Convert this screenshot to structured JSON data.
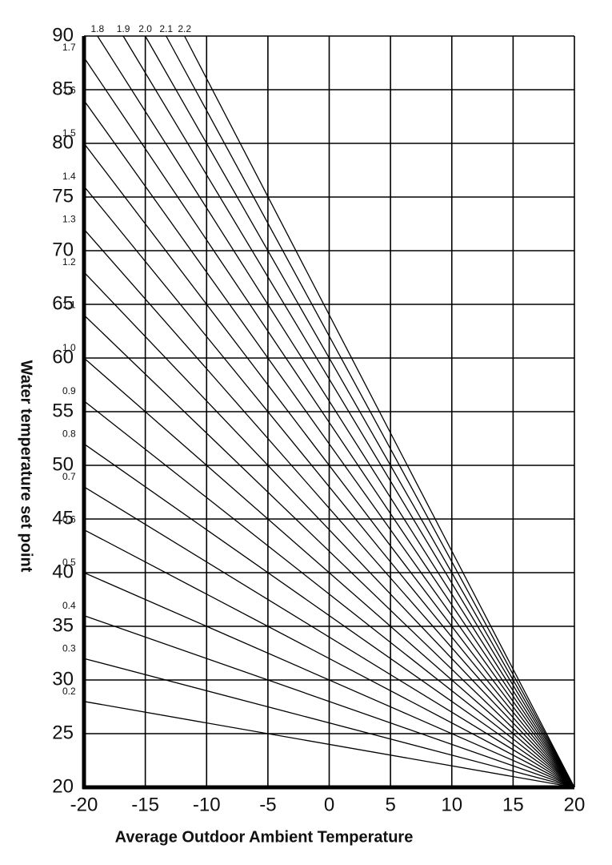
{
  "chart_data": {
    "type": "line",
    "x_label": "Average Outdoor Ambient Temperature",
    "y_label": "Water temperature set point",
    "xlim": [
      -20,
      20
    ],
    "xticks": [
      -20,
      -15,
      -10,
      -5,
      0,
      5,
      10,
      15,
      20
    ],
    "ylim": [
      20,
      90
    ],
    "yticks": [
      20,
      25,
      30,
      35,
      40,
      45,
      50,
      55,
      60,
      65,
      70,
      75,
      80,
      85,
      90
    ],
    "grid": true,
    "color": "#000000",
    "series": [
      {
        "name": "0.2",
        "x": [
          -20,
          20
        ],
        "values": [
          28,
          20
        ]
      },
      {
        "name": "0.3",
        "x": [
          -20,
          20
        ],
        "values": [
          32,
          20
        ]
      },
      {
        "name": "0.4",
        "x": [
          -20,
          20
        ],
        "values": [
          36,
          20
        ]
      },
      {
        "name": "0.5",
        "x": [
          -20,
          20
        ],
        "values": [
          40,
          20
        ]
      },
      {
        "name": "0.6",
        "x": [
          -20,
          20
        ],
        "values": [
          44,
          20
        ]
      },
      {
        "name": "0.7",
        "x": [
          -20,
          20
        ],
        "values": [
          48,
          20
        ]
      },
      {
        "name": "0.8",
        "x": [
          -20,
          20
        ],
        "values": [
          52,
          20
        ]
      },
      {
        "name": "0.9",
        "x": [
          -20,
          20
        ],
        "values": [
          56,
          20
        ]
      },
      {
        "name": "1.0",
        "x": [
          -20,
          20
        ],
        "values": [
          60,
          20
        ]
      },
      {
        "name": "1.1",
        "x": [
          -20,
          20
        ],
        "values": [
          64,
          20
        ]
      },
      {
        "name": "1.2",
        "x": [
          -20,
          20
        ],
        "values": [
          68,
          20
        ]
      },
      {
        "name": "1.3",
        "x": [
          -20,
          20
        ],
        "values": [
          72,
          20
        ]
      },
      {
        "name": "1.4",
        "x": [
          -20,
          20
        ],
        "values": [
          76,
          20
        ]
      },
      {
        "name": "1.5",
        "x": [
          -20,
          20
        ],
        "values": [
          80,
          20
        ]
      },
      {
        "name": "1.6",
        "x": [
          -20,
          20
        ],
        "values": [
          84,
          20
        ]
      },
      {
        "name": "1.7",
        "x": [
          -20,
          20
        ],
        "values": [
          88,
          20
        ]
      },
      {
        "name": "1.8",
        "x": [
          -18.9,
          20
        ],
        "values": [
          90,
          20
        ]
      },
      {
        "name": "1.9",
        "x": [
          -16.8,
          20
        ],
        "values": [
          90,
          20
        ]
      },
      {
        "name": "2.0",
        "x": [
          -15,
          20
        ],
        "values": [
          90,
          20
        ]
      },
      {
        "name": "2.1",
        "x": [
          -13.3,
          20
        ],
        "values": [
          90,
          20
        ]
      },
      {
        "name": "2.2",
        "x": [
          -11.8,
          20
        ],
        "values": [
          90,
          20
        ]
      }
    ]
  }
}
